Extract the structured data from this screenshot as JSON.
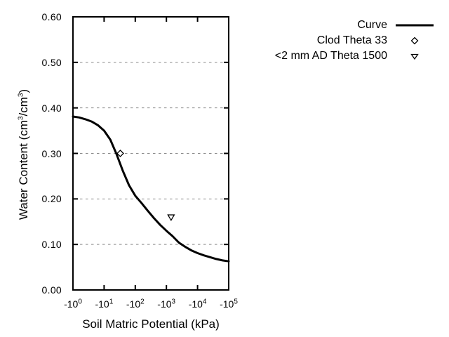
{
  "colors": {
    "curve": "#000000",
    "grid": "#8a8a8a",
    "background": "#ffffff",
    "text": "#000000",
    "marker_fill": "#ffffff"
  },
  "legend": {
    "position": "outside top-right",
    "items": [
      {
        "label": "Curve",
        "symbol": "solid-line"
      },
      {
        "label": "Clod Theta 33",
        "symbol": "open-diamond"
      },
      {
        "label": "<2 mm AD Theta 1500",
        "symbol": "open-triangle-down"
      }
    ]
  },
  "chart_data": {
    "type": "line",
    "title": "",
    "xlabel": "Soil Matric Potential (kPa)",
    "ylabel": "Water Content (cm³/cm³)",
    "ylabel_parts": [
      "Water Content (cm",
      {
        "sup": "3"
      },
      "/cm",
      {
        "sup": "3"
      },
      ")"
    ],
    "x_scale": "log10 of negative matric potential (decades)",
    "xlim_log": [
      0,
      5
    ],
    "ylim": [
      0,
      0.6
    ],
    "x_ticks": [
      {
        "base": "-10",
        "exp": "0"
      },
      {
        "base": "-10",
        "exp": "1"
      },
      {
        "base": "-10",
        "exp": "2"
      },
      {
        "base": "-10",
        "exp": "3"
      },
      {
        "base": "-10",
        "exp": "4"
      },
      {
        "base": "-10",
        "exp": "5"
      }
    ],
    "y_ticks": [
      0.0,
      0.1,
      0.2,
      0.3,
      0.4,
      0.5,
      0.6
    ],
    "grid": "horizontal dashed gridlines at each y tick",
    "legend_position": "outside top-right",
    "series": [
      {
        "name": "Curve",
        "type": "line",
        "x_log": [
          0.0,
          0.2,
          0.4,
          0.6,
          0.8,
          1.0,
          1.2,
          1.4,
          1.6,
          1.8,
          2.0,
          2.2,
          2.4,
          2.6,
          2.8,
          3.0,
          3.2,
          3.4,
          3.6,
          3.8,
          4.0,
          4.2,
          4.4,
          4.6,
          4.8,
          5.0
        ],
        "y": [
          0.381,
          0.379,
          0.375,
          0.37,
          0.362,
          0.35,
          0.33,
          0.298,
          0.262,
          0.23,
          0.207,
          0.191,
          0.174,
          0.158,
          0.143,
          0.13,
          0.118,
          0.104,
          0.095,
          0.087,
          0.081,
          0.076,
          0.072,
          0.068,
          0.065,
          0.063
        ]
      },
      {
        "name": "Clod Theta 33",
        "type": "scatter",
        "marker": "open-diamond",
        "points": [
          {
            "x_log": 1.52,
            "x_kpa": -33,
            "y": 0.3
          }
        ]
      },
      {
        "name": "<2 mm AD Theta 1500",
        "type": "scatter",
        "marker": "open-triangle-down",
        "points": [
          {
            "x_log": 3.15,
            "x_kpa": -1500,
            "y": 0.16
          }
        ]
      }
    ]
  }
}
